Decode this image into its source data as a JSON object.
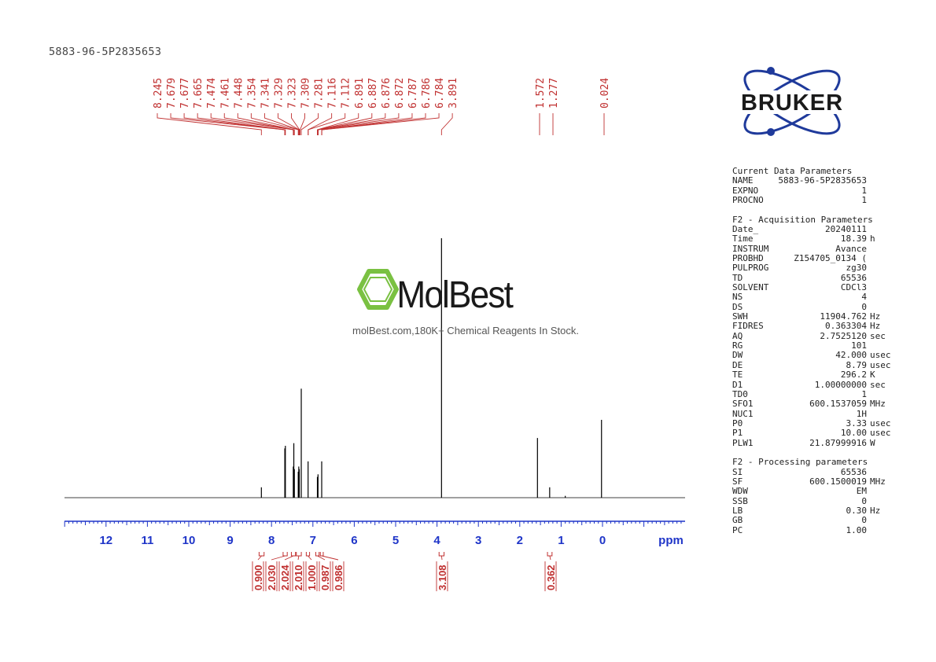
{
  "sample_id": "5883-96-5P2835653",
  "colors": {
    "peak_labels": "#c03030",
    "axis": "#1f35c8",
    "integrals": "#c03030",
    "spectrum": "#000000",
    "logo_blue": "#1f3a9b",
    "watermark_green": "#7ac142"
  },
  "logo": {
    "text": "BRUKER"
  },
  "watermark": {
    "brand": "MolBest",
    "tagline": "molBest.com,180K+ Chemical Reagents In Stock."
  },
  "chart_data": {
    "type": "line",
    "title": "",
    "xlabel": "ppm",
    "ylabel": "",
    "x_reversed": true,
    "xlim": [
      13.0,
      -2.0
    ],
    "x_ticks": [
      12,
      11,
      10,
      9,
      8,
      7,
      6,
      5,
      4,
      3,
      2,
      1,
      0
    ],
    "x_tick_labels": [
      "12",
      "11",
      "10",
      "9",
      "8",
      "7",
      "6",
      "5",
      "4",
      "3",
      "2",
      "1",
      "0"
    ],
    "grid": false,
    "peak_labels": [
      "8.245",
      "7.679",
      "7.677",
      "7.665",
      "7.474",
      "7.461",
      "7.448",
      "7.354",
      "7.341",
      "7.329",
      "7.323",
      "7.309",
      "7.281",
      "7.116",
      "7.112",
      "6.891",
      "6.887",
      "6.876",
      "6.872",
      "6.787",
      "6.786",
      "6.784",
      "3.891",
      "1.572",
      "1.277",
      "0.024"
    ],
    "peaks": [
      {
        "ppm": 8.245,
        "height": 0.04
      },
      {
        "ppm": 7.679,
        "height": 0.19
      },
      {
        "ppm": 7.665,
        "height": 0.2
      },
      {
        "ppm": 7.474,
        "height": 0.12
      },
      {
        "ppm": 7.461,
        "height": 0.21
      },
      {
        "ppm": 7.448,
        "height": 0.11
      },
      {
        "ppm": 7.354,
        "height": 0.1
      },
      {
        "ppm": 7.341,
        "height": 0.12
      },
      {
        "ppm": 7.329,
        "height": 0.11
      },
      {
        "ppm": 7.281,
        "height": 0.42
      },
      {
        "ppm": 7.116,
        "height": 0.14
      },
      {
        "ppm": 6.891,
        "height": 0.08
      },
      {
        "ppm": 6.876,
        "height": 0.09
      },
      {
        "ppm": 6.787,
        "height": 0.14
      },
      {
        "ppm": 3.891,
        "height": 1.0
      },
      {
        "ppm": 1.572,
        "height": 0.23
      },
      {
        "ppm": 1.277,
        "height": 0.04
      },
      {
        "ppm": 0.9,
        "height": 0.007
      },
      {
        "ppm": 0.024,
        "height": 0.3
      }
    ],
    "integrals": [
      {
        "label": "0.900",
        "from": 8.3,
        "to": 8.18
      },
      {
        "label": "2.030",
        "from": 7.72,
        "to": 7.62
      },
      {
        "label": "2.024",
        "from": 7.52,
        "to": 7.42
      },
      {
        "label": "2.010",
        "from": 7.4,
        "to": 7.28
      },
      {
        "label": "1.000",
        "from": 7.16,
        "to": 7.08
      },
      {
        "label": "0.987",
        "from": 6.93,
        "to": 6.85
      },
      {
        "label": "0.986",
        "from": 6.82,
        "to": 6.75
      },
      {
        "label": "3.108",
        "from": 3.95,
        "to": 3.83
      },
      {
        "label": "0.362",
        "from": 1.33,
        "to": 1.22
      }
    ]
  },
  "parameters": [
    {
      "title": "Current Data Parameters",
      "rows": [
        {
          "key": "NAME",
          "value": "5883-96-5P2835653",
          "unit": ""
        },
        {
          "key": "EXPNO",
          "value": "1",
          "unit": ""
        },
        {
          "key": "PROCNO",
          "value": "1",
          "unit": ""
        }
      ]
    },
    {
      "title": "F2 - Acquisition Parameters",
      "rows": [
        {
          "key": "Date_",
          "value": "20240111",
          "unit": ""
        },
        {
          "key": "Time",
          "value": "18.39",
          "unit": "h"
        },
        {
          "key": "INSTRUM",
          "value": "Avance",
          "unit": ""
        },
        {
          "key": "PROBHD",
          "value": "Z154705_0134 (",
          "unit": ""
        },
        {
          "key": "PULPROG",
          "value": "zg30",
          "unit": ""
        },
        {
          "key": "TD",
          "value": "65536",
          "unit": ""
        },
        {
          "key": "SOLVENT",
          "value": "CDCl3",
          "unit": ""
        },
        {
          "key": "NS",
          "value": "4",
          "unit": ""
        },
        {
          "key": "DS",
          "value": "0",
          "unit": ""
        },
        {
          "key": "SWH",
          "value": "11904.762",
          "unit": "Hz"
        },
        {
          "key": "FIDRES",
          "value": "0.363304",
          "unit": "Hz"
        },
        {
          "key": "AQ",
          "value": "2.7525120",
          "unit": "sec"
        },
        {
          "key": "RG",
          "value": "101",
          "unit": ""
        },
        {
          "key": "DW",
          "value": "42.000",
          "unit": "usec"
        },
        {
          "key": "DE",
          "value": "8.79",
          "unit": "usec"
        },
        {
          "key": "TE",
          "value": "296.2",
          "unit": "K"
        },
        {
          "key": "D1",
          "value": "1.00000000",
          "unit": "sec"
        },
        {
          "key": "TD0",
          "value": "1",
          "unit": ""
        },
        {
          "key": "SFO1",
          "value": "600.1537059",
          "unit": "MHz"
        },
        {
          "key": "NUC1",
          "value": "1H",
          "unit": ""
        },
        {
          "key": "P0",
          "value": "3.33",
          "unit": "usec"
        },
        {
          "key": "P1",
          "value": "10.00",
          "unit": "usec"
        },
        {
          "key": "PLW1",
          "value": "21.87999916",
          "unit": "W"
        }
      ]
    },
    {
      "title": "F2 - Processing parameters",
      "rows": [
        {
          "key": "SI",
          "value": "65536",
          "unit": ""
        },
        {
          "key": "SF",
          "value": "600.1500019",
          "unit": "MHz"
        },
        {
          "key": "WDW",
          "value": "EM",
          "unit": ""
        },
        {
          "key": "SSB",
          "value": "0",
          "unit": ""
        },
        {
          "key": "LB",
          "value": "0.30",
          "unit": "Hz"
        },
        {
          "key": "GB",
          "value": "0",
          "unit": ""
        },
        {
          "key": "PC",
          "value": "1.00",
          "unit": ""
        }
      ]
    }
  ]
}
